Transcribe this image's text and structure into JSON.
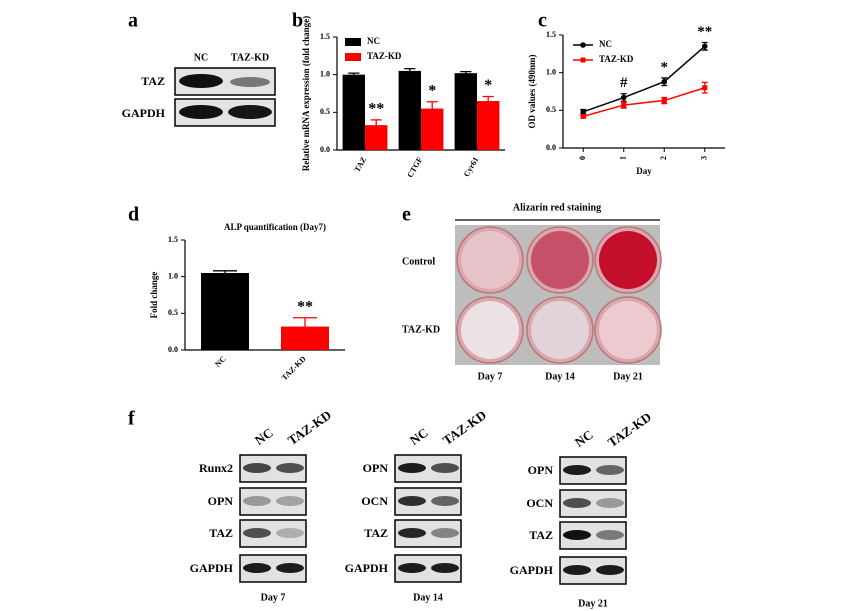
{
  "panel_labels": [
    "a",
    "b",
    "c",
    "d",
    "e",
    "f"
  ],
  "blot_a": {
    "columns": [
      "NC",
      "TAZ-KD"
    ],
    "rows": [
      "TAZ",
      "GAPDH"
    ]
  },
  "chart_data": [
    {
      "type": "bar",
      "ylabel": "Relative mRNA expression (fold change)",
      "categories": [
        "TAZ",
        "CTGF",
        "Cyr61"
      ],
      "series": [
        {
          "name": "NC",
          "color": "#000000",
          "values": [
            1.0,
            1.05,
            1.02
          ],
          "errors": [
            0.02,
            0.03,
            0.02
          ]
        },
        {
          "name": "TAZ-KD",
          "color": "#ff0000",
          "values": [
            0.33,
            0.55,
            0.65
          ],
          "errors": [
            0.07,
            0.09,
            0.06
          ],
          "annotations": [
            "**",
            "*",
            "*"
          ]
        }
      ],
      "ylim": [
        0,
        1.5
      ],
      "yticks": [
        {
          "value": 0,
          "label": "0.0"
        },
        {
          "value": 0.5,
          "label": "0.5"
        },
        {
          "value": 1,
          "label": "1.0"
        },
        {
          "value": 1.5,
          "label": "1.5"
        }
      ]
    },
    {
      "type": "line",
      "xlabel": "Day",
      "ylabel": "OD values (490nm)",
      "x": [
        0,
        1,
        2,
        3
      ],
      "series": [
        {
          "name": "NC",
          "color": "#000000",
          "marker": "circle",
          "values": [
            0.48,
            0.67,
            0.88,
            1.35
          ],
          "errors": [
            0.03,
            0.05,
            0.05,
            0.05
          ],
          "annotations": [
            null,
            "#",
            "*",
            "**"
          ]
        },
        {
          "name": "TAZ-KD",
          "color": "#ff0000",
          "marker": "square",
          "values": [
            0.42,
            0.57,
            0.63,
            0.8
          ],
          "errors": [
            0.02,
            0.04,
            0.04,
            0.07
          ]
        }
      ],
      "xlim": [
        -0.5,
        3.5
      ],
      "xticks": [
        0,
        1,
        2,
        3
      ],
      "ylim": [
        0,
        1.5
      ],
      "yticks": [
        {
          "value": 0,
          "label": "0.0"
        },
        {
          "value": 0.5,
          "label": "0.5"
        },
        {
          "value": 1,
          "label": "1.0"
        },
        {
          "value": 1.5,
          "label": "1.5"
        }
      ]
    },
    {
      "type": "bar",
      "title": "ALP quantification (Day7)",
      "ylabel": "Fold change",
      "categories": [
        "NC",
        "TAZ-KD"
      ],
      "values": [
        1.05,
        0.32
      ],
      "errors": [
        0.03,
        0.12
      ],
      "colors": [
        "#000000",
        "#ff0000"
      ],
      "annotations": [
        null,
        "**"
      ],
      "ylim": [
        0,
        1.5
      ],
      "yticks": [
        {
          "value": 0,
          "label": "0.0"
        },
        {
          "value": 0.5,
          "label": "0.5"
        },
        {
          "value": 1,
          "label": "1.0"
        },
        {
          "value": 1.5,
          "label": "1.5"
        }
      ]
    }
  ],
  "staining": {
    "title": "Alizarin red staining",
    "rows": [
      "Control",
      "TAZ-KD"
    ],
    "columns": [
      "Day 7",
      "Day 14",
      "Day 21"
    ]
  },
  "blot_f": {
    "columns": [
      "NC",
      "TAZ-KD"
    ],
    "groups": [
      {
        "rows": [
          "Runx2",
          "OPN",
          "TAZ",
          "GAPDH"
        ],
        "day": "Day 7"
      },
      {
        "rows": [
          "OPN",
          "OCN",
          "TAZ",
          "GAPDH"
        ],
        "day": "Day 14"
      },
      {
        "rows": [
          "OPN",
          "OCN",
          "TAZ",
          "GAPDH"
        ],
        "day": "Day 21"
      }
    ]
  }
}
